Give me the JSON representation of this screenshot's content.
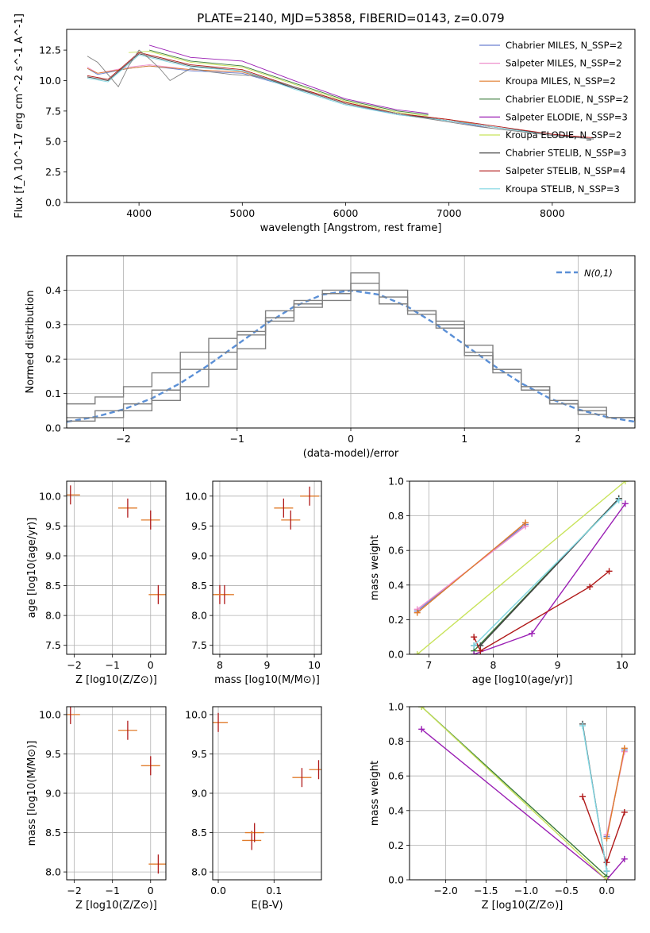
{
  "figure": {
    "title": "PLATE=2140, MJD=53858, FIBERID=0143, z=0.079"
  },
  "colors": {
    "Chabrier MILES": "#6a7fd0",
    "Salpeter MILES": "#ee8ecc",
    "Kroupa MILES": "#e07c2c",
    "Chabrier ELODIE": "#3a7a3a",
    "Salpeter ELODIE": "#9a1fb4",
    "Kroupa ELODIE": "#c8e35a",
    "Chabrier STELIB": "#444444",
    "Salpeter STELIB": "#b01818",
    "Kroupa STELIB": "#7fd6e2",
    "data": "#808080",
    "normal": "#5a8fd6"
  },
  "chart_data": [
    {
      "id": "spectrum",
      "type": "line",
      "title": "PLATE=2140, MJD=53858, FIBERID=0143, z=0.079",
      "xlabel": "wavelength [Angstrom, rest frame]",
      "ylabel": "Flux [f_λ 10^-17 erg cm^-2 s^-1 A^-1]",
      "xlim": [
        3300,
        8800
      ],
      "ylim": [
        0,
        14.2
      ],
      "xticks": [
        4000,
        5000,
        6000,
        7000,
        8000
      ],
      "yticks": [
        0.0,
        2.5,
        5.0,
        7.5,
        10.0,
        12.5
      ],
      "xtick_labels": [
        "4000",
        "5000",
        "6000",
        "7000",
        "8000"
      ],
      "ytick_labels": [
        "0.0",
        "2.5",
        "5.0",
        "7.5",
        "10.0",
        "12.5"
      ],
      "legend_placement": "top-right",
      "legend": [
        "Chabrier MILES, N_SSP=2",
        "Salpeter MILES, N_SSP=2",
        "Kroupa MILES, N_SSP=2",
        "Chabrier ELODIE, N_SSP=2",
        "Salpeter ELODIE, N_SSP=3",
        "Kroupa ELODIE, N_SSP=2",
        "Chabrier STELIB, N_SSP=3",
        "Salpeter STELIB, N_SSP=4",
        "Kroupa STELIB, N_SSP=3"
      ],
      "series": [
        {
          "name": "Chabrier MILES, N_SSP=2",
          "x": [
            3500,
            3600,
            3900,
            4100,
            4500,
            5000,
            5500,
            6000,
            6500,
            7000,
            7400
          ],
          "y": [
            11.0,
            10.5,
            11.0,
            11.2,
            10.8,
            10.6,
            9.4,
            8.1,
            7.2,
            6.7,
            6.1
          ]
        },
        {
          "name": "Salpeter MILES, N_SSP=2",
          "x": [
            3500,
            3600,
            3900,
            4100,
            4500,
            5000,
            5500,
            6000,
            6500,
            7000,
            7400
          ],
          "y": [
            11.1,
            10.6,
            11.1,
            11.3,
            10.9,
            10.7,
            9.5,
            8.2,
            7.3,
            6.8,
            6.2
          ]
        },
        {
          "name": "Kroupa MILES, N_SSP=2",
          "x": [
            3500,
            3600,
            3900,
            4100,
            4500,
            5000,
            5500,
            6000,
            6500,
            7000,
            7400
          ],
          "y": [
            11.0,
            10.6,
            11.0,
            11.2,
            10.9,
            10.7,
            9.5,
            8.2,
            7.3,
            6.8,
            6.2
          ]
        },
        {
          "name": "Chabrier ELODIE, N_SSP=2",
          "x": [
            4100,
            4500,
            5000,
            5500,
            6000,
            6500,
            6800
          ],
          "y": [
            12.5,
            11.6,
            11.2,
            9.8,
            8.4,
            7.5,
            7.2
          ]
        },
        {
          "name": "Salpeter ELODIE, N_SSP=3",
          "x": [
            4100,
            4500,
            5000,
            5500,
            6000,
            6500,
            6800
          ],
          "y": [
            12.9,
            11.9,
            11.6,
            10.0,
            8.5,
            7.6,
            7.3
          ]
        },
        {
          "name": "Kroupa ELODIE, N_SSP=2",
          "x": [
            3900,
            4100,
            4500,
            5000,
            5500,
            6000,
            6500,
            6800
          ],
          "y": [
            12.3,
            12.4,
            11.5,
            11.1,
            9.7,
            8.3,
            7.4,
            7.1
          ]
        },
        {
          "name": "Chabrier STELIB, N_SSP=3",
          "x": [
            3500,
            3700,
            4000,
            4500,
            5000,
            5500,
            6000,
            6500,
            7000,
            7500,
            8000,
            8400
          ],
          "y": [
            10.3,
            10.0,
            12.2,
            11.2,
            10.8,
            9.4,
            8.1,
            7.3,
            6.7,
            6.1,
            5.6,
            5.2
          ]
        },
        {
          "name": "Salpeter STELIB, N_SSP=4",
          "x": [
            3500,
            3700,
            4000,
            4500,
            5000,
            5500,
            6000,
            6500,
            7000,
            7500,
            8000,
            8400
          ],
          "y": [
            10.4,
            10.1,
            12.3,
            11.3,
            10.9,
            9.5,
            8.2,
            7.3,
            6.8,
            6.2,
            5.6,
            5.3
          ]
        },
        {
          "name": "Kroupa STELIB, N_SSP=3",
          "x": [
            3500,
            3700,
            4000,
            4500,
            5000,
            5500,
            6000,
            6500,
            7000,
            7500,
            8000,
            8400
          ],
          "y": [
            10.2,
            9.9,
            12.1,
            11.1,
            10.8,
            9.3,
            8.0,
            7.2,
            6.7,
            6.1,
            5.5,
            5.2
          ]
        },
        {
          "name": "",
          "x": [
            3500,
            3600,
            3700,
            3800,
            3900,
            4000,
            4100,
            4200,
            4300,
            4400,
            4500,
            4700,
            4900,
            5100,
            5300,
            5500,
            5700,
            6000,
            6300,
            6500,
            6700,
            7000,
            7300,
            7600,
            8000,
            8400
          ],
          "y": [
            12.0,
            11.5,
            10.5,
            9.5,
            11.2,
            12.5,
            11.8,
            11.0,
            10.0,
            10.5,
            11.0,
            10.7,
            10.5,
            10.4,
            10.0,
            9.5,
            8.9,
            8.1,
            7.6,
            7.3,
            7.0,
            6.6,
            6.2,
            5.9,
            5.5,
            5.2
          ]
        }
      ]
    },
    {
      "id": "residuals",
      "type": "line",
      "xlabel": "(data-model)/error",
      "ylabel": "Normed distribution",
      "xlim": [
        -2.5,
        2.5
      ],
      "ylim": [
        0,
        0.5
      ],
      "xticks": [
        -2,
        -1,
        0,
        1,
        2
      ],
      "yticks": [
        0.0,
        0.1,
        0.2,
        0.3,
        0.4
      ],
      "xtick_labels": [
        "−2",
        "−1",
        "0",
        "1",
        "2"
      ],
      "ytick_labels": [
        "0.0",
        "0.1",
        "0.2",
        "0.3",
        "0.4"
      ],
      "legend_placement": "top-right",
      "legend": [
        "N(0,1)"
      ],
      "series": [
        {
          "name": "N(0,1)",
          "x": [
            -2.5,
            -2.25,
            -2.0,
            -1.75,
            -1.5,
            -1.25,
            -1.0,
            -0.75,
            -0.5,
            -0.25,
            0,
            0.25,
            0.5,
            0.75,
            1.0,
            1.25,
            1.5,
            1.75,
            2.0,
            2.25,
            2.5
          ],
          "y": [
            0.018,
            0.032,
            0.054,
            0.086,
            0.13,
            0.183,
            0.242,
            0.301,
            0.352,
            0.387,
            0.399,
            0.387,
            0.352,
            0.301,
            0.242,
            0.183,
            0.13,
            0.086,
            0.054,
            0.032,
            0.018
          ]
        },
        {
          "name": "",
          "x": [
            -2.5,
            -2.25,
            -2.0,
            -1.75,
            -1.5,
            -1.25,
            -1.0,
            -0.75,
            -0.5,
            -0.25,
            0,
            0.25,
            0.5,
            0.75,
            1.0,
            1.25,
            1.5,
            1.75,
            2.0,
            2.25,
            2.5
          ],
          "y": [
            0.07,
            0.09,
            0.12,
            0.16,
            0.22,
            0.26,
            0.28,
            0.34,
            0.35,
            0.37,
            0.4,
            0.36,
            0.34,
            0.31,
            0.22,
            0.17,
            0.12,
            0.08,
            0.06,
            0.03,
            0.03
          ]
        },
        {
          "name": "",
          "x": [
            -2.5,
            -2.25,
            -2.0,
            -1.75,
            -1.5,
            -1.25,
            -1.0,
            -0.75,
            -0.5,
            -0.25,
            0,
            0.25,
            0.5,
            0.75,
            1.0,
            1.25,
            1.5,
            1.75,
            2.0,
            2.25,
            2.5
          ],
          "y": [
            0.03,
            0.05,
            0.07,
            0.11,
            0.17,
            0.22,
            0.27,
            0.32,
            0.36,
            0.4,
            0.45,
            0.38,
            0.33,
            0.29,
            0.21,
            0.16,
            0.11,
            0.07,
            0.05,
            0.03,
            0.02
          ]
        },
        {
          "name": "",
          "x": [
            -2.5,
            -2.25,
            -2.0,
            -1.75,
            -1.5,
            -1.25,
            -1.0,
            -0.75,
            -0.5,
            -0.25,
            0,
            0.25,
            0.5,
            0.75,
            1.0,
            1.25,
            1.5,
            1.75,
            2.0,
            2.25,
            2.5
          ],
          "y": [
            0.02,
            0.03,
            0.05,
            0.08,
            0.12,
            0.17,
            0.23,
            0.31,
            0.37,
            0.39,
            0.42,
            0.4,
            0.34,
            0.3,
            0.24,
            0.17,
            0.12,
            0.07,
            0.04,
            0.03,
            0.02
          ]
        }
      ]
    },
    {
      "id": "age-vs-Z",
      "type": "scatter",
      "xlabel": "Z [log10(Z/Z⊙)]",
      "ylabel": "age [log10(age/yr)]",
      "xlim": [
        -2.2,
        0.4
      ],
      "ylim": [
        7.35,
        10.25
      ],
      "xticks": [
        -2,
        -1,
        0
      ],
      "yticks": [
        7.5,
        8.0,
        8.5,
        9.0,
        9.5,
        10.0
      ],
      "xtick_labels": [
        "−2",
        "−1",
        "0"
      ],
      "ytick_labels": [
        "7.5",
        "8.0",
        "8.5",
        "9.0",
        "9.5",
        "10.0"
      ],
      "series": [
        {
          "name": "",
          "x": [
            -2.1,
            -0.6,
            0.0,
            0.2
          ],
          "y": [
            10.02,
            9.8,
            9.6,
            8.35
          ]
        }
      ]
    },
    {
      "id": "age-vs-mass",
      "type": "scatter",
      "xlabel": "mass [log10(M/M⊙)]",
      "ylabel": "",
      "xlim": [
        7.85,
        10.15
      ],
      "ylim": [
        7.35,
        10.25
      ],
      "xticks": [
        8,
        9,
        10
      ],
      "yticks": [
        7.5,
        8.0,
        8.5,
        9.0,
        9.5,
        10.0
      ],
      "xtick_labels": [
        "8",
        "9",
        "10"
      ],
      "ytick_labels": [
        "7.5",
        "8.0",
        "8.5",
        "9.0",
        "9.5",
        "10.0"
      ],
      "series": [
        {
          "name": "",
          "x": [
            8.0,
            8.1,
            9.35,
            9.5,
            9.9
          ],
          "y": [
            8.35,
            8.35,
            9.8,
            9.6,
            10.0
          ]
        }
      ]
    },
    {
      "id": "massweight-vs-age",
      "type": "line",
      "xlabel": "age [log10(age/yr)]",
      "ylabel": "mass weight",
      "xlim": [
        6.7,
        10.2
      ],
      "ylim": [
        0,
        1
      ],
      "xticks": [
        7,
        8,
        9,
        10
      ],
      "yticks": [
        0.0,
        0.2,
        0.4,
        0.6,
        0.8,
        1.0
      ],
      "xtick_labels": [
        "7",
        "8",
        "9",
        "10"
      ],
      "ytick_labels": [
        "0.0",
        "0.2",
        "0.4",
        "0.6",
        "0.8",
        "1.0"
      ],
      "series": [
        {
          "name": "Chabrier MILES, N_SSP=2",
          "x": [
            6.82,
            8.5
          ],
          "y": [
            0.25,
            0.75
          ]
        },
        {
          "name": "Salpeter MILES, N_SSP=2",
          "x": [
            6.82,
            8.5
          ],
          "y": [
            0.26,
            0.74
          ]
        },
        {
          "name": "Kroupa MILES, N_SSP=2",
          "x": [
            6.82,
            8.5
          ],
          "y": [
            0.24,
            0.76
          ]
        },
        {
          "name": "Chabrier ELODIE, N_SSP=2",
          "x": [
            7.7,
            9.95
          ],
          "y": [
            0.02,
            0.9
          ]
        },
        {
          "name": "Salpeter ELODIE, N_SSP=3",
          "x": [
            7.7,
            8.6,
            10.05
          ],
          "y": [
            0.0,
            0.12,
            0.87
          ]
        },
        {
          "name": "Kroupa ELODIE, N_SSP=2",
          "x": [
            6.82,
            10.05
          ],
          "y": [
            0.0,
            1.0
          ]
        },
        {
          "name": "Chabrier STELIB, N_SSP=3",
          "x": [
            7.7,
            7.8,
            9.95
          ],
          "y": [
            0.05,
            0.05,
            0.9
          ]
        },
        {
          "name": "Salpeter STELIB, N_SSP=4",
          "x": [
            7.7,
            7.8,
            9.5,
            9.8
          ],
          "y": [
            0.1,
            0.02,
            0.39,
            0.48
          ]
        },
        {
          "name": "Kroupa STELIB, N_SSP=3",
          "x": [
            7.7,
            9.95
          ],
          "y": [
            0.05,
            0.89
          ]
        }
      ]
    },
    {
      "id": "mass-vs-Z",
      "type": "scatter",
      "xlabel": "Z [log10(Z/Z⊙)]",
      "ylabel": "mass [log10(M/M⊙)]",
      "xlim": [
        -2.2,
        0.4
      ],
      "ylim": [
        7.9,
        10.1
      ],
      "xticks": [
        -2,
        -1,
        0
      ],
      "yticks": [
        8.0,
        8.5,
        9.0,
        9.5,
        10.0
      ],
      "xtick_labels": [
        "−2",
        "−1",
        "0"
      ],
      "ytick_labels": [
        "8.0",
        "8.5",
        "9.0",
        "9.5",
        "10.0"
      ],
      "series": [
        {
          "name": "",
          "x": [
            -2.1,
            -0.6,
            0.0,
            0.2
          ],
          "y": [
            10.0,
            9.8,
            9.35,
            8.1
          ]
        }
      ]
    },
    {
      "id": "mass-vs-EBV",
      "type": "scatter",
      "xlabel": "E(B-V)",
      "ylabel": "",
      "xlim": [
        -0.01,
        0.185
      ],
      "ylim": [
        7.9,
        10.1
      ],
      "xticks": [
        0.0,
        0.1
      ],
      "yticks": [
        8.0,
        8.5,
        9.0,
        9.5,
        10.0
      ],
      "xtick_labels": [
        "0.0",
        "0.1"
      ],
      "ytick_labels": [
        "8.0",
        "8.5",
        "9.0",
        "9.5",
        "10.0"
      ],
      "series": [
        {
          "name": "",
          "x": [
            0.0,
            0.06,
            0.065,
            0.15,
            0.18
          ],
          "y": [
            9.9,
            8.4,
            8.5,
            9.2,
            9.3
          ]
        }
      ]
    },
    {
      "id": "massweight-vs-Z",
      "type": "line",
      "xlabel": "Z [log10(Z/Z⊙)]",
      "ylabel": "mass weight",
      "xlim": [
        -2.45,
        0.35
      ],
      "ylim": [
        0,
        1
      ],
      "xticks": [
        -2.0,
        -1.5,
        -1.0,
        -0.5,
        0.0
      ],
      "yticks": [
        0.0,
        0.2,
        0.4,
        0.6,
        0.8,
        1.0
      ],
      "xtick_labels": [
        "−2.0",
        "−1.5",
        "−1.0",
        "−0.5",
        "0.0"
      ],
      "ytick_labels": [
        "0.0",
        "0.2",
        "0.4",
        "0.6",
        "0.8",
        "1.0"
      ],
      "series": [
        {
          "name": "Chabrier MILES, N_SSP=2",
          "x": [
            0.0,
            0.22
          ],
          "y": [
            0.25,
            0.75
          ]
        },
        {
          "name": "Salpeter MILES, N_SSP=2",
          "x": [
            0.0,
            0.22
          ],
          "y": [
            0.26,
            0.74
          ]
        },
        {
          "name": "Kroupa MILES, N_SSP=2",
          "x": [
            0.0,
            0.22
          ],
          "y": [
            0.24,
            0.76
          ]
        },
        {
          "name": "Chabrier ELODIE, N_SSP=2",
          "x": [
            -2.3,
            0.0
          ],
          "y": [
            1.0,
            0.02
          ]
        },
        {
          "name": "Salpeter ELODIE, N_SSP=3",
          "x": [
            -2.3,
            0.0,
            0.22
          ],
          "y": [
            0.87,
            0.0,
            0.12
          ]
        },
        {
          "name": "Kroupa ELODIE, N_SSP=2",
          "x": [
            -2.3,
            0.0
          ],
          "y": [
            1.0,
            0.0
          ]
        },
        {
          "name": "Chabrier STELIB, N_SSP=3",
          "x": [
            -0.3,
            0.0
          ],
          "y": [
            0.9,
            0.05
          ]
        },
        {
          "name": "Salpeter STELIB, N_SSP=4",
          "x": [
            -0.3,
            0.0,
            0.22
          ],
          "y": [
            0.48,
            0.1,
            0.39
          ]
        },
        {
          "name": "Kroupa STELIB, N_SSP=3",
          "x": [
            -0.3,
            0.0
          ],
          "y": [
            0.89,
            0.05
          ]
        }
      ]
    }
  ]
}
